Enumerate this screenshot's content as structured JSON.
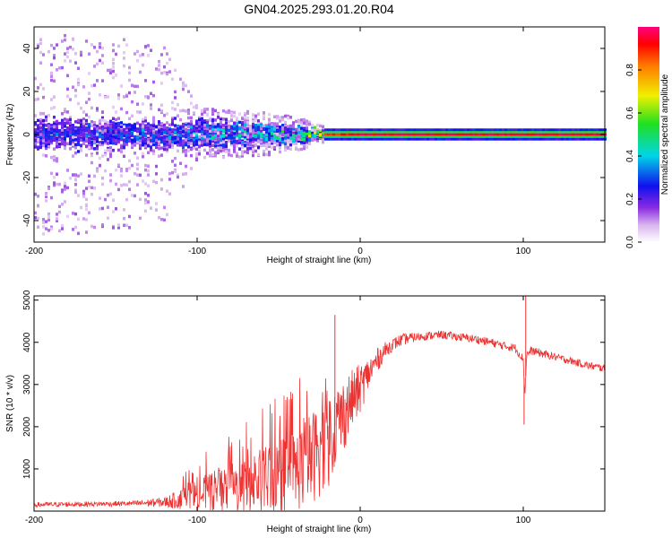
{
  "title": "GN04.2025.293.01.20.R04",
  "colors": {
    "snr_line": "#ee3333",
    "axis": "#000000",
    "background": "#ffffff"
  },
  "chart_data": [
    {
      "type": "heatmap",
      "name": "spectrogram",
      "xlabel": "Height of straight line (km)",
      "ylabel": "Frequency (Hz)",
      "xlim": [
        -200,
        150
      ],
      "ylim": [
        -50,
        50
      ],
      "xticks": [
        -200,
        -100,
        0,
        100
      ],
      "yticks": [
        -40,
        -20,
        0,
        20,
        40
      ],
      "colorbar": {
        "label": "Normalized spectral amplitude",
        "range": [
          0,
          1
        ],
        "ticks": [
          0.0,
          0.2,
          0.4,
          0.6,
          0.8
        ]
      },
      "description_series": [
        {
          "name": "frequency_spread_hz",
          "x": [
            -200,
            -150,
            -120,
            -100,
            -60,
            -40,
            -25,
            0,
            150
          ],
          "values": [
            48,
            45,
            40,
            12,
            10,
            8,
            4,
            2,
            2
          ]
        },
        {
          "name": "peak_amplitude",
          "x": [
            -200,
            -120,
            -100,
            -60,
            -40,
            -25,
            0,
            150
          ],
          "values": [
            0.35,
            0.4,
            0.5,
            0.55,
            0.6,
            0.85,
            0.95,
            0.95
          ]
        }
      ]
    },
    {
      "type": "line",
      "name": "snr",
      "xlabel": "Height of straight line (km)",
      "ylabel": "SNR (10 * v/v)",
      "xlim": [
        -200,
        150
      ],
      "ylim": [
        0,
        5100
      ],
      "xticks": [
        -200,
        -100,
        0,
        100
      ],
      "yticks": [
        1000,
        2000,
        3000,
        4000,
        5000
      ],
      "series": [
        {
          "name": "SNR",
          "x": [
            -200,
            -180,
            -160,
            -140,
            -120,
            -110,
            -100,
            -90,
            -80,
            -70,
            -60,
            -50,
            -40,
            -30,
            -20,
            -15,
            -10,
            -5,
            0,
            5,
            10,
            15,
            20,
            25,
            30,
            40,
            50,
            60,
            70,
            80,
            90,
            95,
            100,
            101,
            102,
            105,
            110,
            120,
            130,
            140,
            150
          ],
          "values": [
            150,
            160,
            170,
            180,
            210,
            280,
            380,
            450,
            520,
            600,
            700,
            800,
            950,
            1250,
            1700,
            2050,
            2300,
            2650,
            2900,
            3250,
            3550,
            3800,
            3950,
            4050,
            4100,
            4150,
            4180,
            4130,
            4080,
            4000,
            3900,
            3870,
            3600,
            2700,
            3700,
            3800,
            3750,
            3650,
            3550,
            3450,
            3380
          ],
          "noise": [
            60,
            60,
            60,
            60,
            120,
            250,
            400,
            500,
            600,
            700,
            800,
            900,
            1000,
            1100,
            1200,
            1000,
            900,
            700,
            600,
            400,
            300,
            200,
            150,
            150,
            120,
            100,
            100,
            100,
            100,
            100,
            100,
            100,
            100,
            100,
            100,
            100,
            100,
            90,
            90,
            90,
            90
          ],
          "annotations": [
            {
              "x": -15.5,
              "y": 4650
            },
            {
              "x": 101.5,
              "y": 5100
            },
            {
              "x": 100.5,
              "y": 2050
            }
          ]
        }
      ]
    }
  ]
}
